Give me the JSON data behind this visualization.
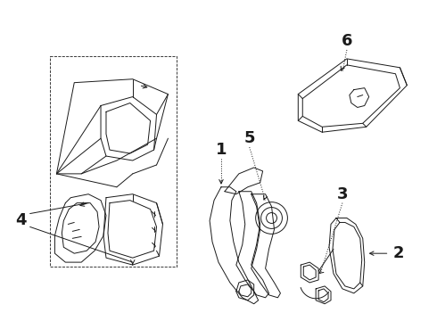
{
  "bg_color": "#ffffff",
  "line_color": "#1a1a1a",
  "figsize": [
    4.9,
    3.6
  ],
  "dpi": 100,
  "lw": 0.7
}
